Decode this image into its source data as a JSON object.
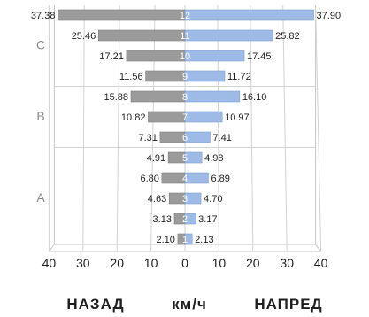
{
  "chart_data": {
    "type": "bar",
    "orientation": "horizontal-diverging",
    "categories": [
      "12",
      "11",
      "10",
      "9",
      "8",
      "7",
      "6",
      "5",
      "4",
      "3",
      "2",
      "1"
    ],
    "series": [
      {
        "name": "НАЗАД",
        "values": [
          37.38,
          25.46,
          17.21,
          11.56,
          15.88,
          10.82,
          7.31,
          4.91,
          6.8,
          4.63,
          3.13,
          2.1
        ],
        "color": "#9b9b9b"
      },
      {
        "name": "НАПРЕД",
        "values": [
          37.9,
          25.82,
          17.45,
          11.72,
          16.1,
          10.97,
          7.41,
          4.98,
          6.89,
          4.7,
          3.17,
          2.13
        ],
        "color": "#9dbbe6"
      }
    ],
    "value_labels_left": [
      "37.38",
      "25.46",
      "17.21",
      "11.56",
      "15.88",
      "10.82",
      "7.31",
      "4.91",
      "6.80",
      "4.63",
      "3.13",
      "2.10"
    ],
    "value_labels_right": [
      "37.90",
      "25.82",
      "17.45",
      "11.72",
      "16.10",
      "10.97",
      "7.41",
      "4.98",
      "6.89",
      "4.70",
      "3.17",
      "2.13"
    ],
    "zones": [
      {
        "label": "C",
        "categories": [
          "12",
          "11",
          "10",
          "9"
        ]
      },
      {
        "label": "B",
        "categories": [
          "8",
          "7",
          "6"
        ]
      },
      {
        "label": "A",
        "categories": [
          "5",
          "4",
          "3",
          "2",
          "1"
        ]
      }
    ],
    "x_ticks": [
      "40",
      "30",
      "20",
      "10",
      "0",
      "10",
      "20",
      "30",
      "40"
    ],
    "xlim": [
      -40,
      40
    ],
    "xlabel_left": "НАЗАД",
    "xlabel_center": "км/ч",
    "xlabel_right": "НАПРЕД",
    "grid": true
  }
}
